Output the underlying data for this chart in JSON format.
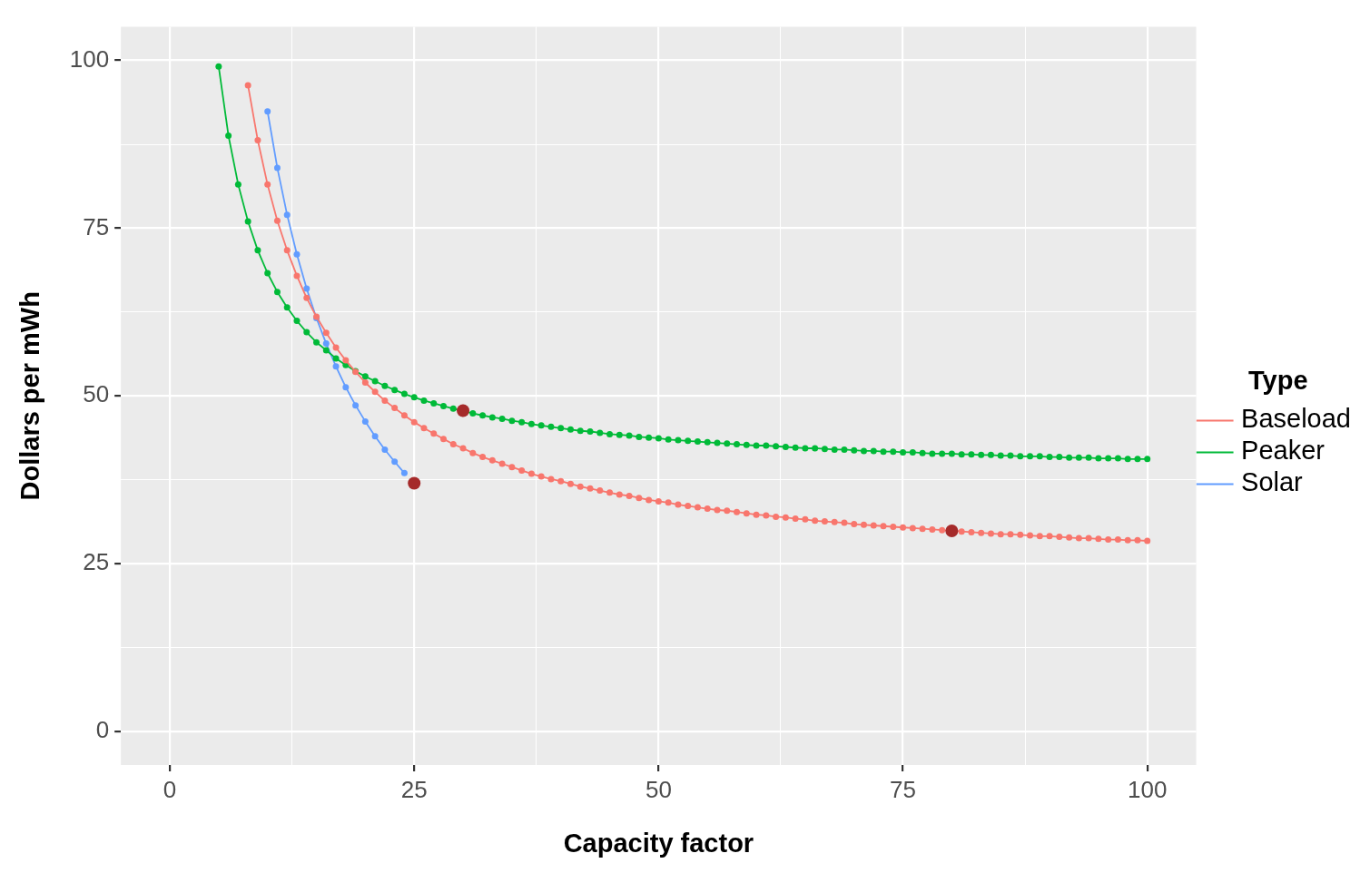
{
  "chart_data": {
    "type": "line",
    "xlabel": "Capacity factor",
    "ylabel": "Dollars per mWh",
    "legend_title": "Type",
    "legend": "right",
    "grid": true,
    "marker": "circle",
    "line_style": "solid",
    "xlim": [
      -5,
      105
    ],
    "ylim": [
      -5,
      105
    ],
    "xticks": [
      0,
      {
        "value": 12.5,
        "label": null
      },
      25,
      {
        "value": 37.5,
        "label": null
      },
      50,
      {
        "value": 62.5,
        "label": null
      },
      75,
      {
        "value": 87.5,
        "label": null
      },
      100
    ],
    "yticks": [
      0,
      {
        "value": 12.5,
        "label": null
      },
      25,
      {
        "value": 37.5,
        "label": null
      },
      50,
      {
        "value": 62.5,
        "label": null
      },
      75,
      {
        "value": 87.5,
        "label": null
      },
      100
    ],
    "series": [
      {
        "name": "Baseload",
        "color": "#f8766d",
        "x": [
          8,
          9,
          10,
          11,
          12,
          13,
          14,
          15,
          16,
          17,
          18,
          19,
          20,
          21,
          22,
          23,
          24,
          25,
          26,
          27,
          28,
          29,
          30,
          31,
          32,
          33,
          34,
          35,
          36,
          37,
          38,
          39,
          40,
          41,
          42,
          43,
          44,
          45,
          46,
          47,
          48,
          49,
          50,
          51,
          52,
          53,
          54,
          55,
          56,
          57,
          58,
          59,
          60,
          61,
          62,
          63,
          64,
          65,
          66,
          67,
          68,
          69,
          70,
          71,
          72,
          73,
          74,
          75,
          76,
          77,
          78,
          79,
          80,
          81,
          82,
          83,
          84,
          85,
          86,
          87,
          88,
          89,
          90,
          91,
          92,
          93,
          94,
          95,
          96,
          97,
          98,
          99,
          100
        ],
        "values": [
          96.3,
          88.1,
          81.5,
          76.1,
          71.7,
          67.9,
          64.6,
          61.8,
          59.4,
          57.2,
          55.3,
          53.6,
          52.0,
          50.6,
          49.3,
          48.2,
          47.1,
          46.1,
          45.2,
          44.4,
          43.6,
          42.8,
          42.2,
          41.5,
          40.9,
          40.4,
          39.9,
          39.4,
          38.9,
          38.4,
          38.0,
          37.6,
          37.3,
          36.9,
          36.5,
          36.2,
          35.9,
          35.6,
          35.3,
          35.1,
          34.8,
          34.5,
          34.3,
          34.1,
          33.8,
          33.6,
          33.4,
          33.2,
          33.0,
          32.9,
          32.7,
          32.5,
          32.3,
          32.2,
          32.0,
          31.9,
          31.7,
          31.6,
          31.4,
          31.3,
          31.2,
          31.1,
          30.9,
          30.8,
          30.7,
          30.6,
          30.5,
          30.4,
          30.3,
          30.2,
          30.1,
          30.0,
          29.9,
          29.8,
          29.7,
          29.6,
          29.5,
          29.4,
          29.4,
          29.3,
          29.2,
          29.1,
          29.1,
          29.0,
          28.9,
          28.8,
          28.8,
          28.7,
          28.6,
          28.6,
          28.5,
          28.5,
          28.4
        ]
      },
      {
        "name": "Peaker",
        "color": "#00ba38",
        "x": [
          5,
          6,
          7,
          8,
          9,
          10,
          11,
          12,
          13,
          14,
          15,
          16,
          17,
          18,
          19,
          20,
          21,
          22,
          23,
          24,
          25,
          26,
          27,
          28,
          29,
          30,
          31,
          32,
          33,
          34,
          35,
          36,
          37,
          38,
          39,
          40,
          41,
          42,
          43,
          44,
          45,
          46,
          47,
          48,
          49,
          50,
          51,
          52,
          53,
          54,
          55,
          56,
          57,
          58,
          59,
          60,
          61,
          62,
          63,
          64,
          65,
          66,
          67,
          68,
          69,
          70,
          71,
          72,
          73,
          74,
          75,
          76,
          77,
          78,
          79,
          80,
          81,
          82,
          83,
          84,
          85,
          86,
          87,
          88,
          89,
          90,
          91,
          92,
          93,
          94,
          95,
          96,
          97,
          98,
          99,
          100
        ],
        "values": [
          99.1,
          88.8,
          81.5,
          76.0,
          71.7,
          68.3,
          65.5,
          63.2,
          61.2,
          59.5,
          58.0,
          56.8,
          55.6,
          54.6,
          53.7,
          52.9,
          52.2,
          51.5,
          50.9,
          50.3,
          49.8,
          49.3,
          48.9,
          48.5,
          48.1,
          47.8,
          47.4,
          47.1,
          46.8,
          46.6,
          46.3,
          46.1,
          45.8,
          45.6,
          45.4,
          45.2,
          45.0,
          44.8,
          44.7,
          44.5,
          44.3,
          44.2,
          44.1,
          43.9,
          43.8,
          43.7,
          43.5,
          43.4,
          43.3,
          43.2,
          43.1,
          43.0,
          42.9,
          42.8,
          42.7,
          42.6,
          42.6,
          42.5,
          42.4,
          42.3,
          42.2,
          42.2,
          42.1,
          42.0,
          42.0,
          41.9,
          41.8,
          41.8,
          41.7,
          41.7,
          41.6,
          41.6,
          41.5,
          41.4,
          41.4,
          41.4,
          41.3,
          41.3,
          41.2,
          41.2,
          41.1,
          41.1,
          41.0,
          41.0,
          41.0,
          40.9,
          40.9,
          40.8,
          40.8,
          40.8,
          40.7,
          40.7,
          40.7,
          40.6,
          40.6,
          40.6
        ]
      },
      {
        "name": "Solar",
        "color": "#619cff",
        "x": [
          10,
          11,
          12,
          13,
          14,
          15,
          16,
          17,
          18,
          19,
          20,
          21,
          22,
          23,
          24
        ],
        "values": [
          92.4,
          84.0,
          77.0,
          71.1,
          66.0,
          61.6,
          57.8,
          54.4,
          51.3,
          48.6,
          46.2,
          44.0,
          42.0,
          40.2,
          38.5
        ]
      },
      {
        "type": "scatter",
        "color": "#a52a2a",
        "x": [
          25,
          30,
          80
        ],
        "values": [
          37.0,
          47.8,
          29.9
        ]
      }
    ]
  }
}
